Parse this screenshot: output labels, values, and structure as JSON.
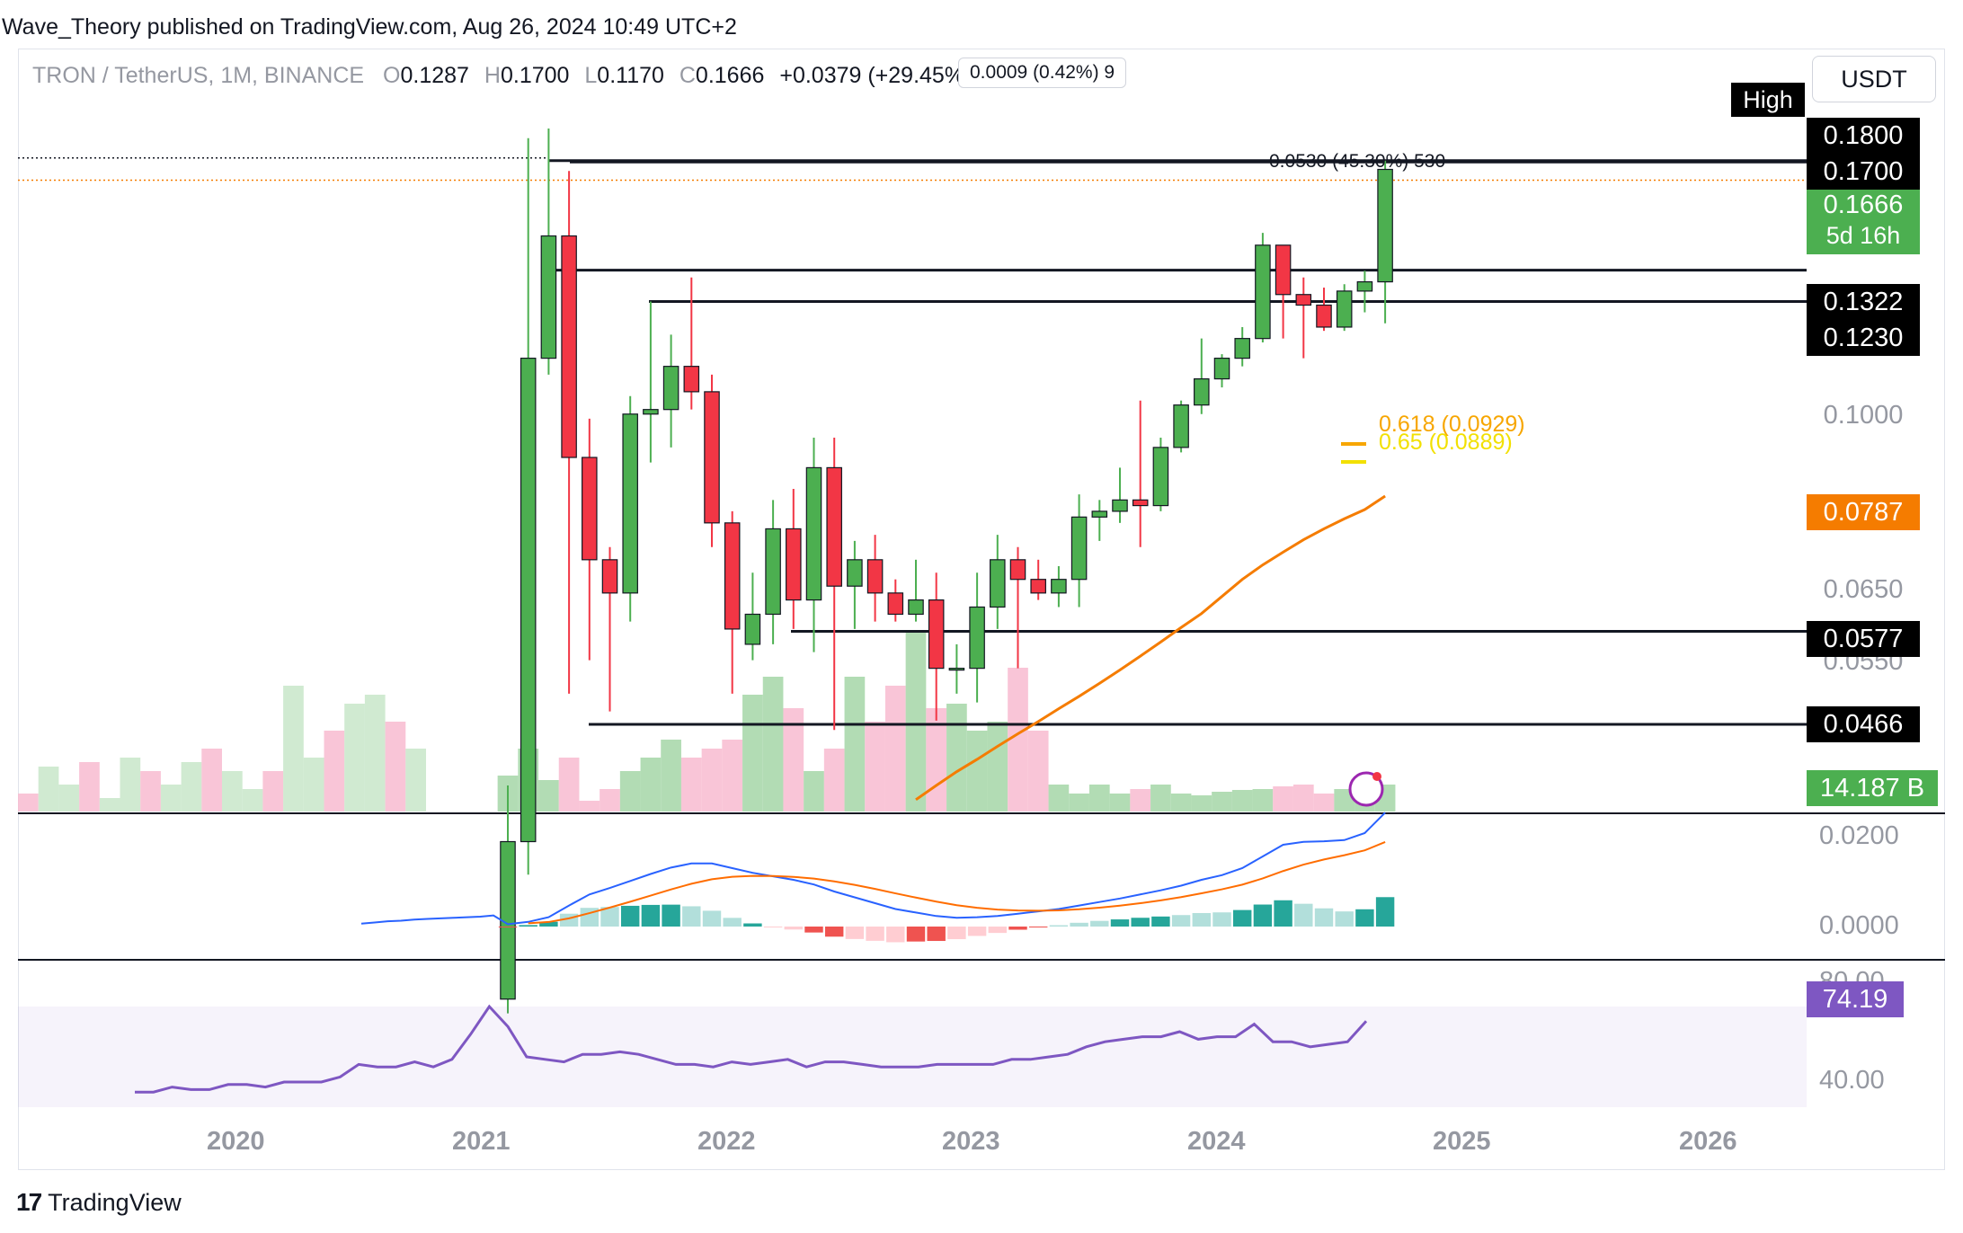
{
  "header": {
    "published": "Wave_Theory published on TradingView.com, Aug 26, 2024 10:49 UTC+2"
  },
  "legend": {
    "symbol": "TRON / TetherUS, 1M, BINANCE",
    "o_label": "O",
    "o": "0.1287",
    "h_label": "H",
    "h": "0.1700",
    "l_label": "L",
    "l": "0.1170",
    "c_label": "C",
    "c": "0.1666",
    "change": "+0.0379 (+29.45%)"
  },
  "measure_box": "0.0009 (0.42%) 9",
  "measure_annotation": "0.0530 (45.30%) 530",
  "currency_button": "USDT",
  "high_tag": "High",
  "price_labels": {
    "p1800": "0.1800",
    "p1700": "0.1700",
    "p1666": "0.1666",
    "countdown": "5d 16h",
    "p1322": "0.1322",
    "p1230": "0.1230",
    "p1000": "0.1000",
    "p0787": "0.0787",
    "p0650": "0.0650",
    "p0577": "0.0577",
    "p0550": "0.0550",
    "p0466": "0.0466",
    "volume": "14.187 B",
    "macd_top": "0.0200",
    "macd_zero": "0.0000",
    "rsi_top": "80.00",
    "rsi_value": "74.19",
    "rsi_low": "40.00"
  },
  "fib": {
    "f618": "0.618 (0.0929)",
    "f65": "0.65 (0.0889)"
  },
  "x_axis": [
    "2020",
    "2021",
    "2022",
    "2023",
    "2024",
    "2025",
    "2026"
  ],
  "footer": {
    "brand": "TradingView",
    "logo": "17"
  },
  "colors": {
    "up": "#4caf50",
    "down": "#f23645",
    "ma": "#f57c00",
    "macd": "#2962ff",
    "signal": "#ff6d00",
    "rsi": "#7e57c2",
    "fib618": "#f7a600",
    "fib65": "#f2e000"
  },
  "chart_data": {
    "type": "candlestick",
    "symbol": "TRON / TetherUS",
    "interval": "1M",
    "candles": [
      {
        "o": 0.0248,
        "h": 0.0405,
        "l": 0.024,
        "c": 0.0356
      },
      {
        "o": 0.0356,
        "h": 0.179,
        "l": 0.033,
        "c": 0.108
      },
      {
        "o": 0.108,
        "h": 0.183,
        "l": 0.104,
        "c": 0.143
      },
      {
        "o": 0.143,
        "h": 0.166,
        "l": 0.05,
        "c": 0.086
      },
      {
        "o": 0.086,
        "h": 0.094,
        "l": 0.054,
        "c": 0.068
      },
      {
        "o": 0.068,
        "h": 0.07,
        "l": 0.048,
        "c": 0.063
      },
      {
        "o": 0.063,
        "h": 0.099,
        "l": 0.059,
        "c": 0.095
      },
      {
        "o": 0.095,
        "h": 0.123,
        "l": 0.085,
        "c": 0.096
      },
      {
        "o": 0.096,
        "h": 0.114,
        "l": 0.088,
        "c": 0.106
      },
      {
        "o": 0.106,
        "h": 0.13,
        "l": 0.096,
        "c": 0.1
      },
      {
        "o": 0.1,
        "h": 0.104,
        "l": 0.07,
        "c": 0.074
      },
      {
        "o": 0.074,
        "h": 0.076,
        "l": 0.05,
        "c": 0.058
      },
      {
        "o": 0.056,
        "h": 0.066,
        "l": 0.054,
        "c": 0.06
      },
      {
        "o": 0.06,
        "h": 0.078,
        "l": 0.056,
        "c": 0.073
      },
      {
        "o": 0.073,
        "h": 0.08,
        "l": 0.058,
        "c": 0.062
      },
      {
        "o": 0.062,
        "h": 0.09,
        "l": 0.055,
        "c": 0.084
      },
      {
        "o": 0.084,
        "h": 0.09,
        "l": 0.046,
        "c": 0.064
      },
      {
        "o": 0.064,
        "h": 0.071,
        "l": 0.058,
        "c": 0.068
      },
      {
        "o": 0.068,
        "h": 0.072,
        "l": 0.059,
        "c": 0.063
      },
      {
        "o": 0.063,
        "h": 0.065,
        "l": 0.059,
        "c": 0.06
      },
      {
        "o": 0.06,
        "h": 0.068,
        "l": 0.059,
        "c": 0.062
      },
      {
        "o": 0.062,
        "h": 0.066,
        "l": 0.047,
        "c": 0.053
      },
      {
        "o": 0.053,
        "h": 0.056,
        "l": 0.05,
        "c": 0.053
      },
      {
        "o": 0.053,
        "h": 0.066,
        "l": 0.049,
        "c": 0.061
      },
      {
        "o": 0.061,
        "h": 0.072,
        "l": 0.058,
        "c": 0.068
      },
      {
        "o": 0.068,
        "h": 0.07,
        "l": 0.053,
        "c": 0.065
      },
      {
        "o": 0.065,
        "h": 0.068,
        "l": 0.062,
        "c": 0.063
      },
      {
        "o": 0.063,
        "h": 0.067,
        "l": 0.061,
        "c": 0.065
      },
      {
        "o": 0.065,
        "h": 0.079,
        "l": 0.061,
        "c": 0.075
      },
      {
        "o": 0.075,
        "h": 0.078,
        "l": 0.071,
        "c": 0.076
      },
      {
        "o": 0.076,
        "h": 0.084,
        "l": 0.074,
        "c": 0.078
      },
      {
        "o": 0.078,
        "h": 0.098,
        "l": 0.07,
        "c": 0.077
      },
      {
        "o": 0.077,
        "h": 0.09,
        "l": 0.076,
        "c": 0.088
      },
      {
        "o": 0.088,
        "h": 0.098,
        "l": 0.087,
        "c": 0.097
      },
      {
        "o": 0.097,
        "h": 0.113,
        "l": 0.095,
        "c": 0.103
      },
      {
        "o": 0.103,
        "h": 0.109,
        "l": 0.101,
        "c": 0.108
      },
      {
        "o": 0.108,
        "h": 0.116,
        "l": 0.106,
        "c": 0.113
      },
      {
        "o": 0.113,
        "h": 0.144,
        "l": 0.112,
        "c": 0.14
      },
      {
        "o": 0.14,
        "h": 0.14,
        "l": 0.113,
        "c": 0.125
      },
      {
        "o": 0.125,
        "h": 0.13,
        "l": 0.108,
        "c": 0.122
      },
      {
        "o": 0.122,
        "h": 0.127,
        "l": 0.115,
        "c": 0.116
      },
      {
        "o": 0.116,
        "h": 0.128,
        "l": 0.115,
        "c": 0.126
      },
      {
        "o": 0.126,
        "h": 0.132,
        "l": 0.12,
        "c": 0.1287
      },
      {
        "o": 0.1287,
        "h": 0.17,
        "l": 0.117,
        "c": 0.1666
      }
    ],
    "ma": [
      0.0392,
      0.0405,
      0.0418,
      0.043,
      0.0443,
      0.0456,
      0.0469,
      0.0483,
      0.0497,
      0.0512,
      0.0528,
      0.0545,
      0.0563,
      0.0582,
      0.0601,
      0.0625,
      0.065,
      0.0672,
      0.0692,
      0.0712,
      0.073,
      0.0747,
      0.0763,
      0.0787
    ],
    "ma_start_index": 20,
    "horizontal_levels": [
      0.17,
      0.1666,
      0.1322,
      0.123,
      0.0577,
      0.0466
    ],
    "fib_levels": [
      {
        "ratio": 0.618,
        "price": 0.0929
      },
      {
        "ratio": 0.65,
        "price": 0.0889
      }
    ],
    "volume_last": "14.187 B",
    "macd": [
      0.0004,
      0.0008,
      0.0016,
      0.0036,
      0.0055,
      0.0066,
      0.0078,
      0.009,
      0.0101,
      0.0108,
      0.0108,
      0.01,
      0.0092,
      0.0086,
      0.008,
      0.0072,
      0.006,
      0.005,
      0.004,
      0.003,
      0.0024,
      0.0018,
      0.0015,
      0.0016,
      0.0018,
      0.0022,
      0.0026,
      0.003,
      0.0036,
      0.0042,
      0.0048,
      0.0055,
      0.0062,
      0.007,
      0.008,
      0.0088,
      0.01,
      0.012,
      0.014,
      0.0145,
      0.0146,
      0.0148,
      0.016,
      0.0195
    ],
    "rsi_last": "74.19",
    "x_ticks": [
      "2020",
      "2021",
      "2022",
      "2023",
      "2024",
      "2025",
      "2026"
    ]
  }
}
